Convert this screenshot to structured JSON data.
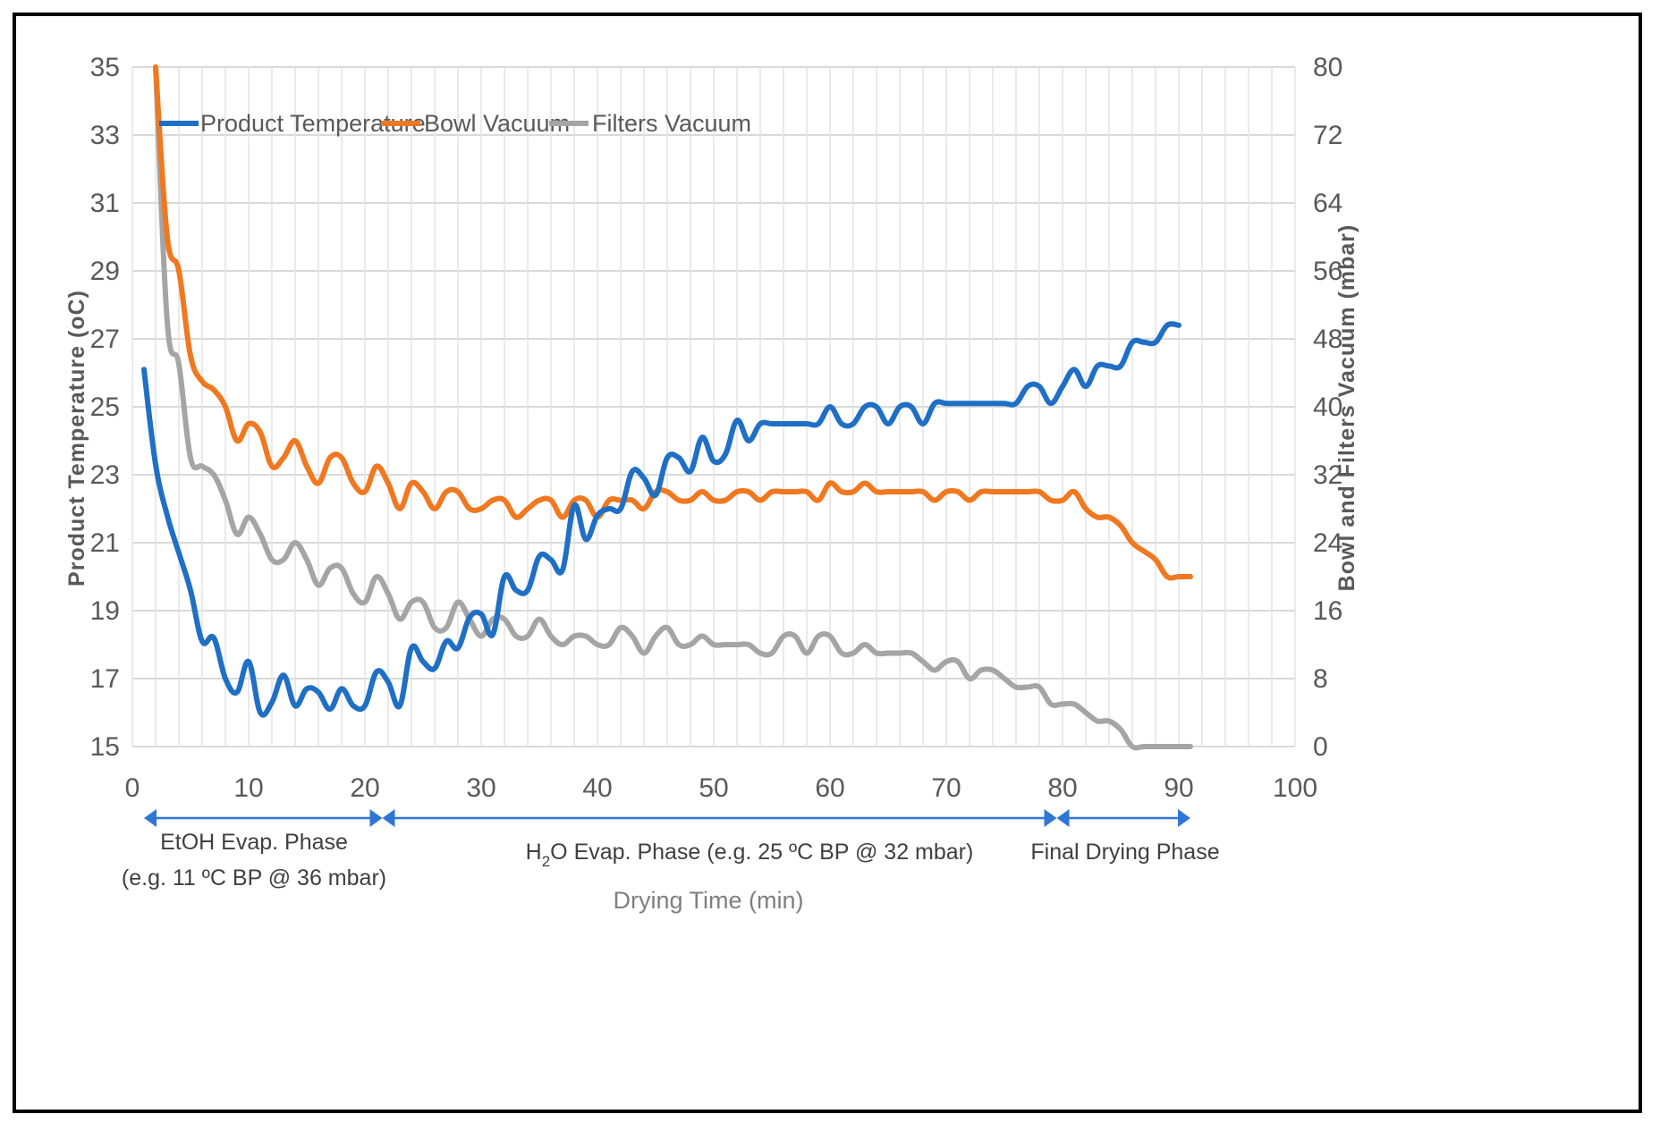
{
  "chart_data": {
    "type": "line",
    "title": "",
    "xlabel": "Drying Time (min)",
    "ylabel": "Product Temperature (oC)",
    "y2label": "Bowl and Filters Vacuum (mbar)",
    "xlim": [
      0,
      100
    ],
    "ylim": [
      15,
      35
    ],
    "y2lim": [
      0,
      80
    ],
    "x_ticks": [
      "0",
      "10",
      "20",
      "30",
      "40",
      "50",
      "60",
      "70",
      "80",
      "90",
      "100"
    ],
    "y_ticks": [
      "15",
      "17",
      "19",
      "21",
      "23",
      "25",
      "27",
      "29",
      "31",
      "33",
      "35"
    ],
    "y2_ticks": [
      "0",
      "8",
      "16",
      "24",
      "32",
      "40",
      "48",
      "56",
      "64",
      "72",
      "80"
    ],
    "grid": true,
    "legend_position": "top-left",
    "series": [
      {
        "name": "Product Temperature",
        "axis": "left",
        "color": "#1f6fc5",
        "x": [
          1,
          2,
          3,
          4,
          5,
          6,
          7,
          8,
          9,
          10,
          11,
          12,
          13,
          14,
          15,
          16,
          17,
          18,
          19,
          20,
          21,
          22,
          23,
          24,
          25,
          26,
          27,
          28,
          29,
          30,
          31,
          32,
          33,
          34,
          35,
          36,
          37,
          38,
          39,
          40,
          41,
          42,
          43,
          44,
          45,
          46,
          47,
          48,
          49,
          50,
          51,
          52,
          53,
          54,
          55,
          56,
          57,
          58,
          59,
          60,
          61,
          62,
          63,
          64,
          65,
          66,
          67,
          68,
          69,
          70,
          71,
          72,
          73,
          74,
          75,
          76,
          77,
          78,
          79,
          80,
          81,
          82,
          83,
          84,
          85,
          86,
          87,
          88,
          89,
          90
        ],
        "y": [
          26.1,
          23.3,
          21.8,
          20.7,
          19.6,
          18.1,
          18.2,
          17.0,
          16.6,
          17.5,
          16.0,
          16.3,
          17.1,
          16.2,
          16.7,
          16.6,
          16.1,
          16.7,
          16.2,
          16.2,
          17.2,
          16.9,
          16.2,
          17.9,
          17.5,
          17.3,
          18.1,
          17.9,
          18.8,
          18.9,
          18.3,
          20.0,
          19.6,
          19.6,
          20.6,
          20.5,
          20.2,
          22.1,
          21.1,
          21.8,
          22.0,
          22.0,
          23.1,
          22.9,
          22.4,
          23.5,
          23.5,
          23.1,
          24.1,
          23.4,
          23.6,
          24.6,
          24.0,
          24.5,
          24.5,
          24.5,
          24.5,
          24.5,
          24.5,
          25.0,
          24.5,
          24.5,
          25.0,
          25.0,
          24.5,
          25.0,
          25.0,
          24.5,
          25.1,
          25.1,
          25.1,
          25.1,
          25.1,
          25.1,
          25.1,
          25.1,
          25.6,
          25.6,
          25.1,
          25.6,
          26.1,
          25.6,
          26.2,
          26.2,
          26.2,
          26.9,
          26.9,
          26.9,
          27.4,
          27.4
        ]
      },
      {
        "name": "Bowl Vacuum",
        "axis": "right",
        "color": "#f07820",
        "x": [
          2,
          3,
          4,
          5,
          6,
          7,
          8,
          9,
          10,
          11,
          12,
          13,
          14,
          15,
          16,
          17,
          18,
          19,
          20,
          21,
          22,
          23,
          24,
          25,
          26,
          27,
          28,
          29,
          30,
          31,
          32,
          33,
          34,
          35,
          36,
          37,
          38,
          39,
          40,
          41,
          42,
          43,
          44,
          45,
          46,
          47,
          48,
          49,
          50,
          51,
          52,
          53,
          54,
          55,
          56,
          57,
          58,
          59,
          60,
          61,
          62,
          63,
          64,
          65,
          66,
          67,
          68,
          69,
          70,
          71,
          72,
          73,
          74,
          75,
          76,
          77,
          78,
          79,
          80,
          81,
          82,
          83,
          84,
          85,
          86,
          87,
          88,
          89,
          90,
          91
        ],
        "y": [
          80,
          60,
          56,
          46,
          43,
          42,
          40,
          36,
          38,
          37,
          33,
          34,
          36,
          33,
          31,
          34,
          34,
          31,
          30,
          33,
          31,
          28,
          31,
          30,
          28,
          30,
          30,
          28,
          28,
          29,
          29,
          27,
          28,
          29,
          29,
          27,
          29,
          29,
          27,
          29,
          29,
          29,
          28,
          30,
          30,
          29,
          29,
          30,
          29,
          29,
          30,
          30,
          29,
          30,
          30,
          30,
          30,
          29,
          31,
          30,
          30,
          31,
          30,
          30,
          30,
          30,
          30,
          29,
          30,
          30,
          29,
          30,
          30,
          30,
          30,
          30,
          30,
          29,
          29,
          30,
          28,
          27,
          27,
          26,
          24,
          23,
          22,
          20,
          20,
          20
        ]
      },
      {
        "name": "Filters Vacuum",
        "axis": "right",
        "color": "#a5a5a5",
        "x": [
          2,
          3,
          4,
          5,
          6,
          7,
          8,
          9,
          10,
          11,
          12,
          13,
          14,
          15,
          16,
          17,
          18,
          19,
          20,
          21,
          22,
          23,
          24,
          25,
          26,
          27,
          28,
          29,
          30,
          31,
          32,
          33,
          34,
          35,
          36,
          37,
          38,
          39,
          40,
          41,
          42,
          43,
          44,
          45,
          46,
          47,
          48,
          49,
          50,
          51,
          52,
          53,
          54,
          55,
          56,
          57,
          58,
          59,
          60,
          61,
          62,
          63,
          64,
          65,
          66,
          67,
          68,
          69,
          70,
          71,
          72,
          73,
          74,
          75,
          76,
          77,
          78,
          79,
          80,
          81,
          82,
          83,
          84,
          85,
          86,
          87,
          88,
          89,
          90,
          91
        ],
        "y": [
          80,
          50,
          45,
          34,
          33,
          32,
          29,
          25,
          27,
          25,
          22,
          22,
          24,
          22,
          19,
          21,
          21,
          18,
          17,
          20,
          18,
          15,
          17,
          17,
          14,
          14,
          17,
          15,
          13,
          15,
          15,
          13,
          13,
          15,
          13,
          12,
          13,
          13,
          12,
          12,
          14,
          13,
          11,
          13,
          14,
          12,
          12,
          13,
          12,
          12,
          12,
          12,
          11,
          11,
          13,
          13,
          11,
          13,
          13,
          11,
          11,
          12,
          11,
          11,
          11,
          11,
          10,
          9,
          10,
          10,
          8,
          9,
          9,
          8,
          7,
          7,
          7,
          5,
          5,
          5,
          4,
          3,
          3,
          2,
          0,
          0,
          0,
          0,
          0,
          0
        ]
      }
    ],
    "phases": [
      {
        "from": 1,
        "to": 21.5,
        "label_1": "EtOH Evap. Phase",
        "label_2": "(e.g. 11 ºC BP @ 36 mbar)"
      },
      {
        "from": 21.5,
        "to": 79.5,
        "label_1": "H",
        "label_sub": "2",
        "label_2": "O Evap. Phase (e.g. 25 ºC BP @ 32 mbar)"
      },
      {
        "from": 79.5,
        "to": 91,
        "label_1": "Final Drying Phase"
      }
    ]
  }
}
